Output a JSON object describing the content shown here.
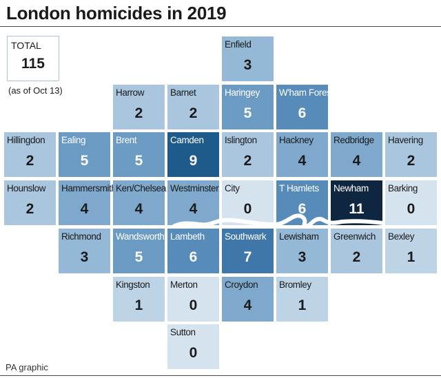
{
  "title": "London homicides in 2019",
  "total": {
    "label": "TOTAL",
    "value": "115",
    "note": "(as of Oct 13)"
  },
  "credit": "PA graphic",
  "scale_colors": {
    "0": "#d5e3ef",
    "1": "#bdd3e6",
    "2": "#a9c6de",
    "3": "#95b8d6",
    "4": "#7fa9cc",
    "5": "#6b9ac3",
    "6": "#578bba",
    "7": "#3f77ab",
    "9": "#1f5a8d",
    "11": "#0f2640"
  },
  "boroughs": [
    {
      "name": "Enfield",
      "value": 3,
      "col": 4,
      "row": 0
    },
    {
      "name": "Harrow",
      "value": 2,
      "col": 2,
      "row": 1
    },
    {
      "name": "Barnet",
      "value": 2,
      "col": 3,
      "row": 1
    },
    {
      "name": "Haringey",
      "value": 5,
      "col": 4,
      "row": 1
    },
    {
      "name": "W'ham Forest",
      "value": 6,
      "col": 5,
      "row": 1
    },
    {
      "name": "Hillingdon",
      "value": 2,
      "col": 0,
      "row": 2
    },
    {
      "name": "Ealing",
      "value": 5,
      "col": 1,
      "row": 2
    },
    {
      "name": "Brent",
      "value": 5,
      "col": 2,
      "row": 2
    },
    {
      "name": "Camden",
      "value": 9,
      "col": 3,
      "row": 2
    },
    {
      "name": "Islington",
      "value": 2,
      "col": 4,
      "row": 2
    },
    {
      "name": "Hackney",
      "value": 4,
      "col": 5,
      "row": 2
    },
    {
      "name": "Redbridge",
      "value": 4,
      "col": 6,
      "row": 2
    },
    {
      "name": "Havering",
      "value": 2,
      "col": 7,
      "row": 2
    },
    {
      "name": "Hounslow",
      "value": 2,
      "col": 0,
      "row": 3
    },
    {
      "name": "Hammersmith",
      "value": 4,
      "col": 1,
      "row": 3
    },
    {
      "name": "Ken/Chelsea",
      "value": 4,
      "col": 2,
      "row": 3
    },
    {
      "name": "Westminster",
      "value": 4,
      "col": 3,
      "row": 3
    },
    {
      "name": "City",
      "value": 0,
      "col": 4,
      "row": 3
    },
    {
      "name": "T Hamlets",
      "value": 6,
      "col": 5,
      "row": 3
    },
    {
      "name": "Newham",
      "value": 11,
      "col": 6,
      "row": 3
    },
    {
      "name": "Barking",
      "value": 0,
      "col": 7,
      "row": 3
    },
    {
      "name": "Richmond",
      "value": 3,
      "col": 1,
      "row": 4
    },
    {
      "name": "Wandsworth",
      "value": 5,
      "col": 2,
      "row": 4
    },
    {
      "name": "Lambeth",
      "value": 6,
      "col": 3,
      "row": 4
    },
    {
      "name": "Southwark",
      "value": 7,
      "col": 4,
      "row": 4
    },
    {
      "name": "Lewisham",
      "value": 3,
      "col": 5,
      "row": 4
    },
    {
      "name": "Greenwich",
      "value": 2,
      "col": 6,
      "row": 4
    },
    {
      "name": "Bexley",
      "value": 1,
      "col": 7,
      "row": 4
    },
    {
      "name": "Kingston",
      "value": 1,
      "col": 2,
      "row": 5
    },
    {
      "name": "Merton",
      "value": 0,
      "col": 3,
      "row": 5
    },
    {
      "name": "Croydon",
      "value": 4,
      "col": 4,
      "row": 5
    },
    {
      "name": "Bromley",
      "value": 1,
      "col": 5,
      "row": 5
    },
    {
      "name": "Sutton",
      "value": 0,
      "col": 3,
      "row": 6
    }
  ]
}
